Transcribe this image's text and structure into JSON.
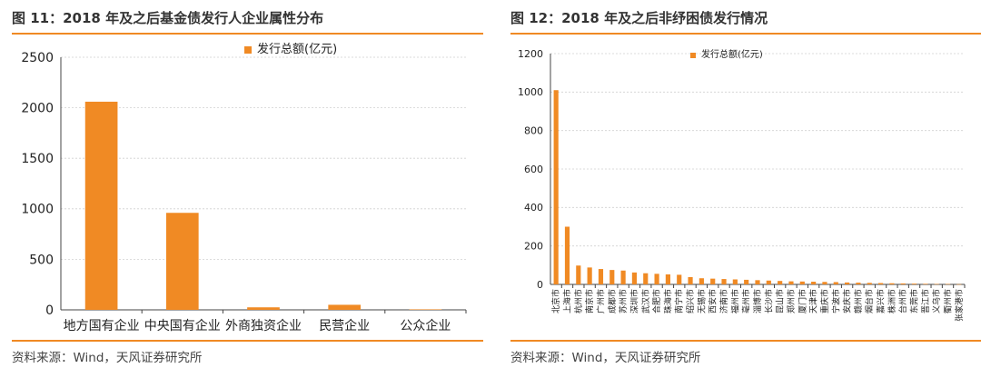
{
  "colors": {
    "accent": "#F08A24",
    "bar": "#F08A24",
    "grid": "#D0D0D0"
  },
  "left": {
    "title": "图 11：2018 年及之后基金债发行人企业属性分布",
    "source": "资料来源：Wind，天风证券研究所"
  },
  "right": {
    "title": "图 12：2018 年及之后非纾困债发行情况",
    "source": "资料来源：Wind，天风证券研究所"
  },
  "chart_data": [
    {
      "type": "bar",
      "legend": "top-center",
      "grid": true,
      "categories": [
        "地方国有企业",
        "中央国有企业",
        "外商独资企业",
        "民营企业",
        "公众企业"
      ],
      "series": [
        {
          "name": "发行总额(亿元)",
          "values": [
            2060,
            960,
            25,
            50,
            5
          ]
        }
      ],
      "ylim": [
        0,
        2500
      ],
      "yticks": [
        0,
        500,
        1000,
        1500,
        2000,
        2500
      ]
    },
    {
      "type": "bar",
      "legend": "top-center",
      "grid": true,
      "categories": [
        "北京市",
        "上海市",
        "杭州市",
        "南京市",
        "广州市",
        "成都市",
        "苏州市",
        "深圳市",
        "武汉市",
        "合肥市",
        "珠海市",
        "南宁市",
        "绍兴市",
        "无锡市",
        "西安市",
        "济南市",
        "福州市",
        "亳州市",
        "淄博市",
        "长沙市",
        "昆山市",
        "郑州市",
        "厦门市",
        "天津市",
        "重庆市",
        "宁波市",
        "安庆市",
        "赣州市",
        "烟台市",
        "嘉兴市",
        "株洲市",
        "台州市",
        "东莞市",
        "晋江市",
        "义乌市",
        "衢州市",
        "张家港市"
      ],
      "series": [
        {
          "name": "发行总额(亿元)",
          "values": [
            1010,
            300,
            98,
            88,
            80,
            75,
            72,
            62,
            58,
            55,
            52,
            50,
            38,
            32,
            30,
            28,
            26,
            24,
            22,
            20,
            18,
            16,
            15,
            14,
            13,
            12,
            10,
            9,
            8,
            7,
            6,
            5,
            4,
            3,
            2,
            2,
            1
          ]
        }
      ],
      "ylim": [
        0,
        1200
      ],
      "yticks": [
        0,
        200,
        400,
        600,
        800,
        1000,
        1200
      ]
    }
  ]
}
